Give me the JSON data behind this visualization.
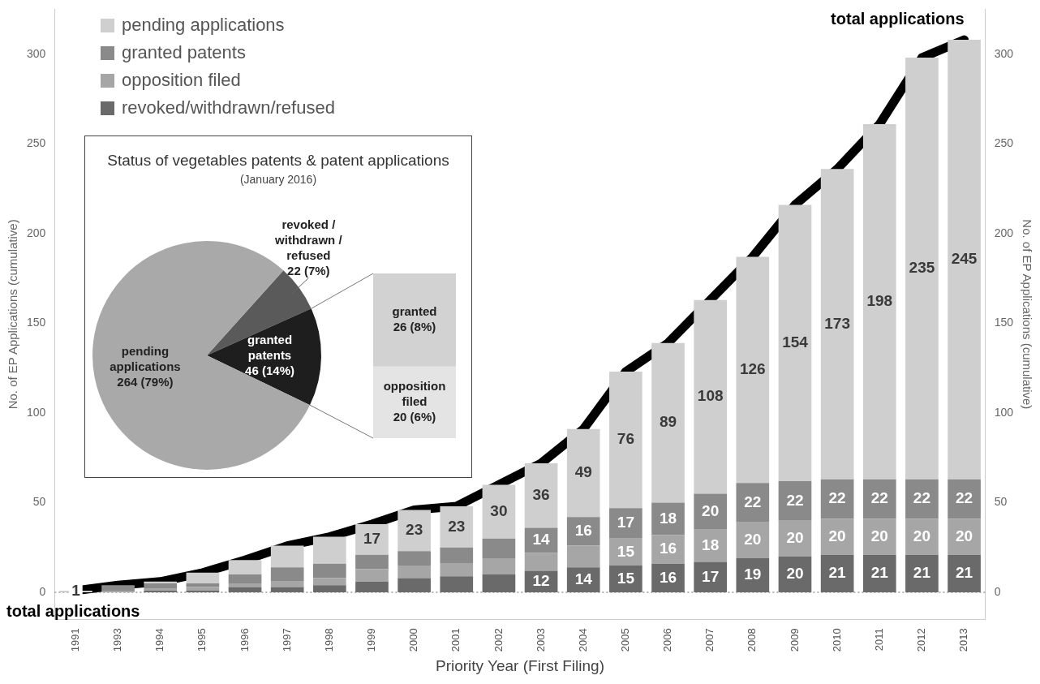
{
  "chart_data": [
    {
      "type": "bar",
      "stacked": true,
      "xlabel": "Priority Year (First Filing)",
      "ylabel": "No. of EP Applications (cumulative)",
      "y2label": "No. of EP Applications (cumulative)",
      "categories": [
        "1991",
        "1993",
        "1994",
        "1995",
        "1996",
        "1997",
        "1998",
        "1999",
        "2000",
        "2001",
        "2002",
        "2003",
        "2004",
        "2005",
        "2006",
        "2007",
        "2008",
        "2009",
        "2010",
        "2011",
        "2012",
        "2013"
      ],
      "series": [
        {
          "name": "revoked/withdrawn/refused",
          "color": "#6a6a6a",
          "values": [
            0,
            0,
            1,
            1,
            3,
            3,
            4,
            6,
            8,
            9,
            10,
            12,
            14,
            15,
            16,
            17,
            19,
            20,
            21,
            21,
            21,
            21
          ],
          "value_labels": [
            null,
            null,
            null,
            null,
            null,
            null,
            null,
            null,
            null,
            null,
            null,
            "12",
            "14",
            "15",
            "16",
            "17",
            "19",
            "20",
            "21",
            "21",
            "21",
            "21"
          ]
        },
        {
          "name": "opposition filed",
          "color": "#a6a6a6",
          "values": [
            0,
            1,
            1,
            2,
            2,
            3,
            4,
            7,
            7,
            7,
            9,
            10,
            12,
            15,
            16,
            18,
            20,
            20,
            20,
            20,
            20,
            20
          ],
          "value_labels": [
            null,
            null,
            null,
            null,
            null,
            null,
            null,
            null,
            null,
            null,
            null,
            null,
            null,
            "15",
            "16",
            "18",
            "20",
            "20",
            "20",
            "20",
            "20",
            "20"
          ]
        },
        {
          "name": "granted patents",
          "color": "#8a8a8a",
          "values": [
            0,
            3,
            3,
            2,
            5,
            8,
            8,
            8,
            8,
            9,
            11,
            14,
            16,
            17,
            18,
            20,
            22,
            22,
            22,
            22,
            22,
            22
          ],
          "value_labels": [
            null,
            null,
            null,
            null,
            null,
            null,
            null,
            null,
            null,
            null,
            null,
            "14",
            "16",
            "17",
            "18",
            "20",
            "22",
            "22",
            "22",
            "22",
            "22",
            "22"
          ]
        },
        {
          "name": "pending applications",
          "color": "#cfcfcf",
          "values": [
            1,
            0,
            1,
            6,
            8,
            12,
            15,
            17,
            23,
            23,
            30,
            36,
            49,
            76,
            89,
            108,
            126,
            154,
            173,
            198,
            235,
            245
          ],
          "value_labels": [
            "1",
            null,
            null,
            null,
            null,
            null,
            null,
            "17",
            "23",
            "23",
            "30",
            "36",
            "49",
            "76",
            "89",
            "108",
            "126",
            "154",
            "173",
            "198",
            "235",
            "245"
          ]
        },
        {
          "name": "total applications",
          "type": "line",
          "color": "#000000",
          "values": [
            1,
            4,
            6,
            11,
            18,
            26,
            31,
            38,
            46,
            48,
            60,
            72,
            91,
            123,
            139,
            163,
            187,
            216,
            236,
            261,
            298,
            308
          ]
        }
      ],
      "ylim": [
        -15,
        325
      ],
      "yticks": [
        0,
        50,
        100,
        150,
        200,
        250,
        300
      ],
      "y2lim": [
        -15,
        325
      ],
      "y2ticks": [
        0,
        50,
        100,
        150,
        200,
        250,
        300
      ],
      "grid": false,
      "legend": "top left",
      "ref_lines": [
        {
          "axis": "y",
          "value": 0,
          "color": "#999999",
          "line_style": "dotted"
        }
      ]
    },
    {
      "type": "pie",
      "title": "Status of vegetables patents & patent applications",
      "subtitle": "(January 2016)",
      "categories": [
        "revoked / withdrawn / refused",
        "granted patents",
        "pending applications"
      ],
      "values": [
        22,
        46,
        264
      ],
      "colors": [
        "#5a5a5a",
        "#1e1e1e",
        "#a9a9a9"
      ],
      "value_labels": [
        "22 (7%)",
        "46 (14%)",
        "264 (79%)"
      ]
    },
    {
      "type": "bar",
      "stacked": true,
      "categories": [
        null
      ],
      "tick_labels": false,
      "series": [
        {
          "name": "opposition filed",
          "color": "#e4e4e4",
          "values": [
            20
          ],
          "value_labels": [
            "20 (6%)"
          ]
        },
        {
          "name": "granted",
          "color": "#d2d2d2",
          "values": [
            26
          ],
          "value_labels": [
            "26 (8%)"
          ]
        }
      ]
    }
  ]
}
